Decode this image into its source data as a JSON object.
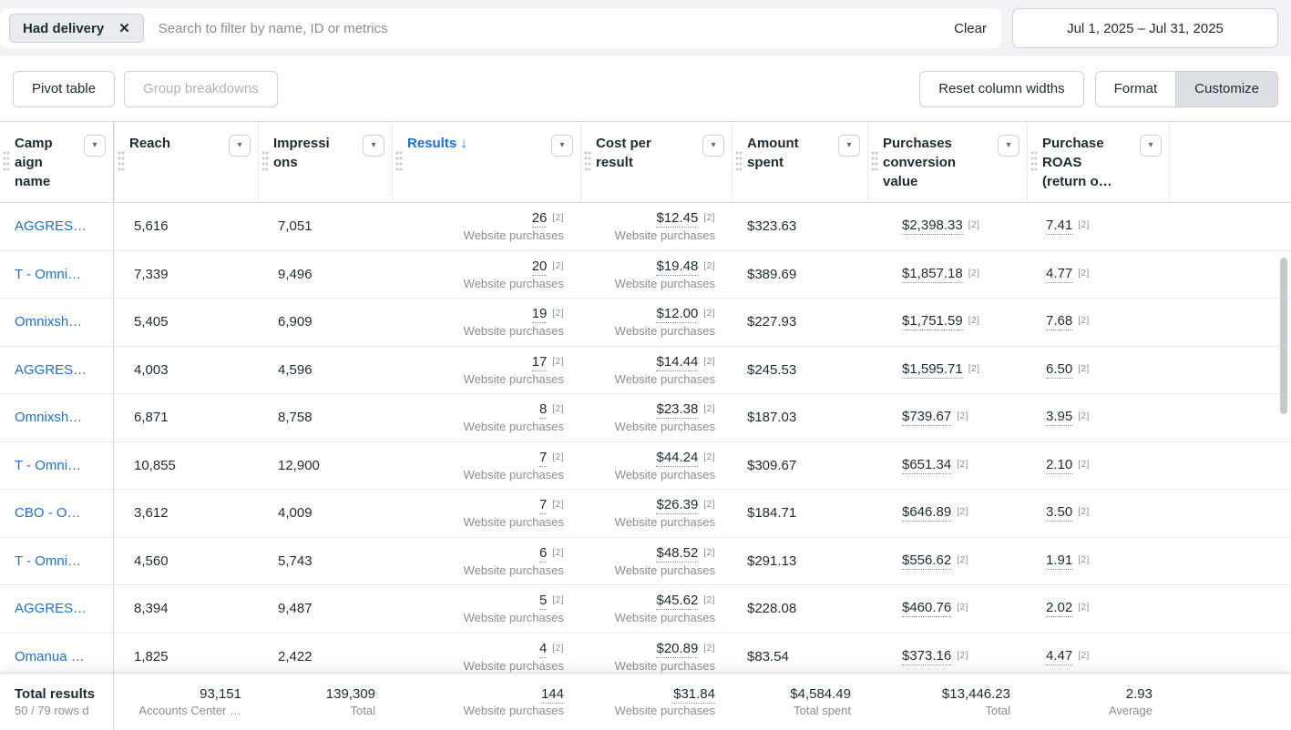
{
  "colors": {
    "link_blue": "#1b6fd8",
    "background_gray": "#f0f2f5",
    "selected_button_bg": "#dcdfe4",
    "secondary_text": "#8a8d91"
  },
  "icons": {
    "close": "✕",
    "chevron_down": "▾",
    "sort_desc": "↓"
  },
  "filter_bar": {
    "filter_chip": "Had delivery",
    "search_placeholder": "Search to filter by name, ID or metrics",
    "clear": "Clear",
    "date_range": "Jul 1, 2025 – Jul 31, 2025"
  },
  "toolbar": {
    "pivot_table": "Pivot table",
    "group_breakdowns": "Group breakdowns",
    "reset_column_widths": "Reset column widths",
    "format": "Format",
    "customize": "Customize"
  },
  "table": {
    "attribution_badge": "[2]",
    "columns": [
      {
        "key": "campaign_name",
        "label": "Campaign name"
      },
      {
        "key": "reach",
        "label": "Reach"
      },
      {
        "key": "impressions",
        "label": "Impressions"
      },
      {
        "key": "results",
        "label": "Results",
        "sorted": "desc"
      },
      {
        "key": "cost_per_result",
        "label": "Cost per result"
      },
      {
        "key": "amount_spent",
        "label": "Amount spent"
      },
      {
        "key": "purchases_conversion_value",
        "label": "Purchases conversion value"
      },
      {
        "key": "purchase_roas",
        "label": "Purchase ROAS (return o…"
      }
    ],
    "rows": [
      {
        "name": "AGGRES…",
        "reach": "5,616",
        "impressions": "7,051",
        "results": "26",
        "results_sub": "Website purchases",
        "cost_per_result": "$12.45",
        "cost_sub": "Website purchases",
        "amount_spent": "$323.63",
        "purchases_conversion_value": "$2,398.33",
        "purchase_roas": "7.41"
      },
      {
        "name": "T - Omni…",
        "reach": "7,339",
        "impressions": "9,496",
        "results": "20",
        "results_sub": "Website purchases",
        "cost_per_result": "$19.48",
        "cost_sub": "Website purchases",
        "amount_spent": "$389.69",
        "purchases_conversion_value": "$1,857.18",
        "purchase_roas": "4.77"
      },
      {
        "name": "Omnixsh…",
        "reach": "5,405",
        "impressions": "6,909",
        "results": "19",
        "results_sub": "Website purchases",
        "cost_per_result": "$12.00",
        "cost_sub": "Website purchases",
        "amount_spent": "$227.93",
        "purchases_conversion_value": "$1,751.59",
        "purchase_roas": "7.68"
      },
      {
        "name": "AGGRES…",
        "reach": "4,003",
        "impressions": "4,596",
        "results": "17",
        "results_sub": "Website purchases",
        "cost_per_result": "$14.44",
        "cost_sub": "Website purchases",
        "amount_spent": "$245.53",
        "purchases_conversion_value": "$1,595.71",
        "purchase_roas": "6.50"
      },
      {
        "name": "Omnixsh…",
        "reach": "6,871",
        "impressions": "8,758",
        "results": "8",
        "results_sub": "Website purchases",
        "cost_per_result": "$23.38",
        "cost_sub": "Website purchases",
        "amount_spent": "$187.03",
        "purchases_conversion_value": "$739.67",
        "purchase_roas": "3.95"
      },
      {
        "name": "T - Omni…",
        "reach": "10,855",
        "impressions": "12,900",
        "results": "7",
        "results_sub": "Website purchases",
        "cost_per_result": "$44.24",
        "cost_sub": "Website purchases",
        "amount_spent": "$309.67",
        "purchases_conversion_value": "$651.34",
        "purchase_roas": "2.10"
      },
      {
        "name": "CBO - O…",
        "reach": "3,612",
        "impressions": "4,009",
        "results": "7",
        "results_sub": "Website purchases",
        "cost_per_result": "$26.39",
        "cost_sub": "Website purchases",
        "amount_spent": "$184.71",
        "purchases_conversion_value": "$646.89",
        "purchase_roas": "3.50"
      },
      {
        "name": "T - Omni…",
        "reach": "4,560",
        "impressions": "5,743",
        "results": "6",
        "results_sub": "Website purchases",
        "cost_per_result": "$48.52",
        "cost_sub": "Website purchases",
        "amount_spent": "$291.13",
        "purchases_conversion_value": "$556.62",
        "purchase_roas": "1.91"
      },
      {
        "name": "AGGRES…",
        "reach": "8,394",
        "impressions": "9,487",
        "results": "5",
        "results_sub": "Website purchases",
        "cost_per_result": "$45.62",
        "cost_sub": "Website purchases",
        "amount_spent": "$228.08",
        "purchases_conversion_value": "$460.76",
        "purchase_roas": "2.02"
      },
      {
        "name": "Omanua …",
        "reach": "1,825",
        "impressions": "2,422",
        "results": "4",
        "results_sub": "Website purchases",
        "cost_per_result": "$20.89",
        "cost_sub": "Website purchases",
        "amount_spent": "$83.54",
        "purchases_conversion_value": "$373.16",
        "purchase_roas": "4.47"
      }
    ],
    "footer": {
      "title": "Total results",
      "rows_shown": "50 / 79 rows d",
      "reach": {
        "value": "93,151",
        "sub": "Accounts Center …"
      },
      "impressions": {
        "value": "139,309",
        "sub": "Total"
      },
      "results": {
        "value": "144",
        "sub": "Website purchases"
      },
      "cost_per_result": {
        "value": "$31.84",
        "sub": "Website purchases"
      },
      "amount_spent": {
        "value": "$4,584.49",
        "sub": "Total spent"
      },
      "purchases_conversion_value": {
        "value": "$13,446.23",
        "sub": "Total"
      },
      "purchase_roas": {
        "value": "2.93",
        "sub": "Average"
      }
    }
  }
}
